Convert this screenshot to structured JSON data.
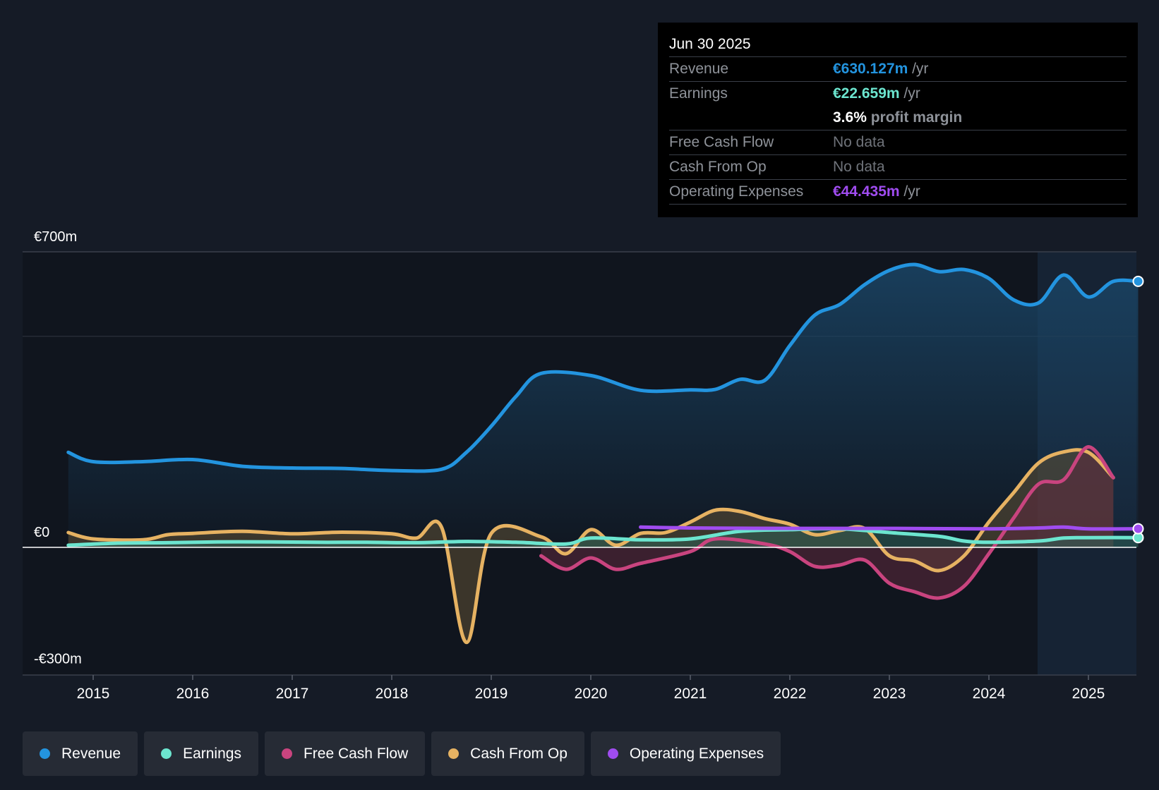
{
  "tooltip": {
    "date": "Jun 30 2025",
    "revenue_label": "Revenue",
    "revenue_value": "€630.127m",
    "revenue_unit": " /yr",
    "earnings_label": "Earnings",
    "earnings_value": "€22.659m",
    "earnings_unit": " /yr",
    "margin_value": "3.6%",
    "margin_label": " profit margin",
    "fcf_label": "Free Cash Flow",
    "fcf_value": "No data",
    "cfo_label": "Cash From Op",
    "cfo_value": "No data",
    "opex_label": "Operating Expenses",
    "opex_value": "€44.435m",
    "opex_unit": " /yr"
  },
  "legend": [
    {
      "label": "Revenue",
      "color": "#2394df"
    },
    {
      "label": "Earnings",
      "color": "#6ce5cf"
    },
    {
      "label": "Free Cash Flow",
      "color": "#c9447f"
    },
    {
      "label": "Cash From Op",
      "color": "#e6b262"
    },
    {
      "label": "Operating Expenses",
      "color": "#a04cf0"
    }
  ],
  "chart_data": {
    "type": "line",
    "y_tick_labels": [
      {
        "v": 700,
        "label": "€700m"
      },
      {
        "v": 0,
        "label": "€0"
      },
      {
        "v": -300,
        "label": "-€300m"
      }
    ],
    "ylim": [
      -300,
      700
    ],
    "xlim": [
      2014.25,
      2025.5
    ],
    "x_ticks": [
      "2015",
      "2016",
      "2017",
      "2018",
      "2019",
      "2020",
      "2021",
      "2022",
      "2023",
      "2024",
      "2025"
    ],
    "series": [
      {
        "name": "Revenue",
        "color": "#2394df",
        "fill": "#1a4566",
        "points": [
          [
            2014.75,
            225
          ],
          [
            2015.0,
            203
          ],
          [
            2015.5,
            203
          ],
          [
            2016.0,
            208
          ],
          [
            2016.5,
            192
          ],
          [
            2017.0,
            188
          ],
          [
            2017.5,
            187
          ],
          [
            2018.0,
            182
          ],
          [
            2018.5,
            185
          ],
          [
            2018.75,
            225
          ],
          [
            2019.0,
            287
          ],
          [
            2019.25,
            358
          ],
          [
            2019.5,
            412
          ],
          [
            2020.0,
            407
          ],
          [
            2020.5,
            372
          ],
          [
            2021.0,
            373
          ],
          [
            2021.25,
            374
          ],
          [
            2021.5,
            398
          ],
          [
            2021.75,
            396
          ],
          [
            2022.0,
            478
          ],
          [
            2022.25,
            550
          ],
          [
            2022.5,
            575
          ],
          [
            2022.75,
            622
          ],
          [
            2023.0,
            656
          ],
          [
            2023.25,
            670
          ],
          [
            2023.5,
            653
          ],
          [
            2023.75,
            658
          ],
          [
            2024.0,
            637
          ],
          [
            2024.25,
            586
          ],
          [
            2024.5,
            579
          ],
          [
            2024.75,
            645
          ],
          [
            2025.0,
            593
          ],
          [
            2025.25,
            630
          ],
          [
            2025.5,
            630
          ]
        ]
      },
      {
        "name": "Earnings",
        "color": "#6ce5cf",
        "fill": "#2e6258",
        "points": [
          [
            2014.75,
            5
          ],
          [
            2015.25,
            10
          ],
          [
            2015.75,
            11
          ],
          [
            2016.25,
            13
          ],
          [
            2016.75,
            13
          ],
          [
            2017.25,
            12
          ],
          [
            2017.75,
            12
          ],
          [
            2018.25,
            11
          ],
          [
            2018.75,
            14
          ],
          [
            2019.25,
            12
          ],
          [
            2019.75,
            8
          ],
          [
            2020.0,
            22
          ],
          [
            2020.5,
            18
          ],
          [
            2021.0,
            20
          ],
          [
            2021.5,
            38
          ],
          [
            2022.0,
            42
          ],
          [
            2022.5,
            44
          ],
          [
            2023.0,
            35
          ],
          [
            2023.5,
            26
          ],
          [
            2023.75,
            15
          ],
          [
            2024.0,
            12
          ],
          [
            2024.5,
            15
          ],
          [
            2024.75,
            22
          ],
          [
            2025.0,
            23
          ],
          [
            2025.5,
            23
          ]
        ]
      },
      {
        "name": "Free Cash Flow",
        "color": "#c9447f",
        "fill": "#5e2a3e",
        "points": [
          [
            2019.5,
            -20
          ],
          [
            2019.75,
            -52
          ],
          [
            2020.0,
            -25
          ],
          [
            2020.25,
            -52
          ],
          [
            2020.5,
            -38
          ],
          [
            2021.0,
            -10
          ],
          [
            2021.25,
            20
          ],
          [
            2021.75,
            8
          ],
          [
            2022.0,
            -10
          ],
          [
            2022.25,
            -45
          ],
          [
            2022.5,
            -42
          ],
          [
            2022.75,
            -30
          ],
          [
            2023.0,
            -85
          ],
          [
            2023.25,
            -105
          ],
          [
            2023.5,
            -120
          ],
          [
            2023.75,
            -92
          ],
          [
            2024.0,
            -15
          ],
          [
            2024.25,
            70
          ],
          [
            2024.5,
            150
          ],
          [
            2024.75,
            160
          ],
          [
            2025.0,
            238
          ],
          [
            2025.25,
            165
          ]
        ]
      },
      {
        "name": "Cash From Op",
        "color": "#e6b262",
        "fill": "#5e5034",
        "points": [
          [
            2014.75,
            35
          ],
          [
            2015.0,
            20
          ],
          [
            2015.5,
            18
          ],
          [
            2015.75,
            30
          ],
          [
            2016.0,
            33
          ],
          [
            2016.5,
            38
          ],
          [
            2017.0,
            32
          ],
          [
            2017.5,
            36
          ],
          [
            2018.0,
            32
          ],
          [
            2018.25,
            22
          ],
          [
            2018.5,
            48
          ],
          [
            2018.75,
            -225
          ],
          [
            2019.0,
            33
          ],
          [
            2019.5,
            25
          ],
          [
            2019.75,
            -15
          ],
          [
            2020.0,
            42
          ],
          [
            2020.25,
            5
          ],
          [
            2020.5,
            33
          ],
          [
            2020.75,
            35
          ],
          [
            2021.0,
            60
          ],
          [
            2021.25,
            88
          ],
          [
            2021.5,
            85
          ],
          [
            2021.75,
            68
          ],
          [
            2022.0,
            55
          ],
          [
            2022.25,
            30
          ],
          [
            2022.5,
            40
          ],
          [
            2022.75,
            45
          ],
          [
            2023.0,
            -20
          ],
          [
            2023.25,
            -32
          ],
          [
            2023.5,
            -55
          ],
          [
            2023.75,
            -20
          ],
          [
            2024.0,
            60
          ],
          [
            2024.25,
            130
          ],
          [
            2024.5,
            200
          ],
          [
            2024.75,
            226
          ],
          [
            2025.0,
            225
          ],
          [
            2025.25,
            165
          ]
        ]
      },
      {
        "name": "Operating Expenses",
        "color": "#a04cf0",
        "fill": "none",
        "points": [
          [
            2020.5,
            48
          ],
          [
            2021.0,
            46
          ],
          [
            2022.0,
            45
          ],
          [
            2023.0,
            45
          ],
          [
            2024.0,
            44
          ],
          [
            2024.5,
            46
          ],
          [
            2024.75,
            48
          ],
          [
            2025.0,
            44
          ],
          [
            2025.5,
            44
          ]
        ]
      }
    ]
  }
}
